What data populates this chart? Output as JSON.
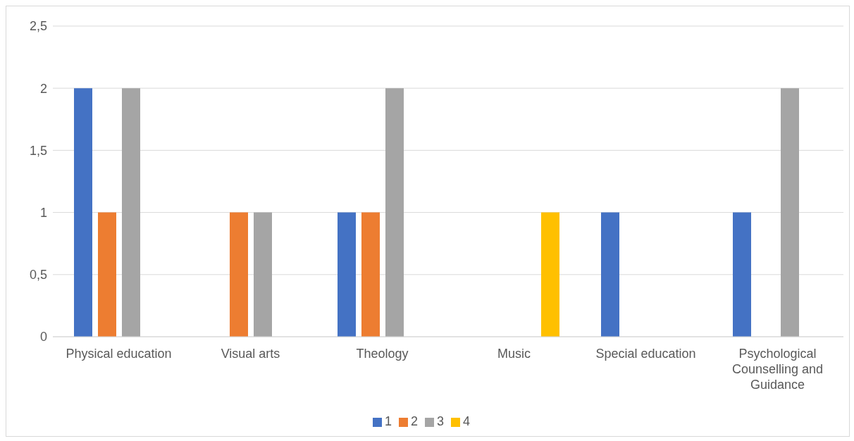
{
  "chart_data": {
    "type": "bar",
    "categories": [
      "Physical education",
      "Visual arts",
      "Theology",
      "Music",
      "Special education",
      "Psychological Counselling and Guidance"
    ],
    "series": [
      {
        "name": "1",
        "color": "#4472c4",
        "values": [
          2,
          0,
          1,
          0,
          1,
          1
        ]
      },
      {
        "name": "2",
        "color": "#ed7d31",
        "values": [
          1,
          1,
          1,
          0,
          0,
          0
        ]
      },
      {
        "name": "3",
        "color": "#a5a5a5",
        "values": [
          2,
          1,
          2,
          0,
          0,
          2
        ]
      },
      {
        "name": "4",
        "color": "#ffc000",
        "values": [
          0,
          0,
          0,
          1,
          0,
          0
        ]
      }
    ],
    "ylim": [
      0,
      2.5
    ],
    "yticks": [
      0,
      {
        "value": 0.5,
        "label": "0,5"
      },
      1,
      {
        "value": 1.5,
        "label": "1,5"
      },
      2,
      {
        "value": 2.5,
        "label": "2,5"
      }
    ],
    "grid": "y",
    "legend": "bottom"
  }
}
